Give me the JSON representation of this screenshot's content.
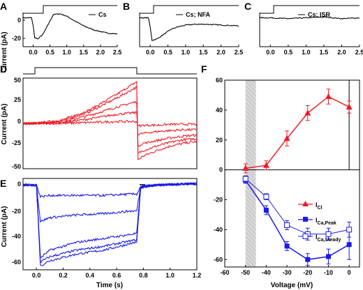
{
  "chart_data": [
    {
      "panel": "A",
      "type": "line",
      "legend": "Cs",
      "ylabel": "Current (pA)",
      "xlim": [
        -0.3,
        2.5
      ],
      "ylim": [
        -35,
        10
      ],
      "x_ticks": [
        "0.0",
        "0.5",
        "1.0",
        "1.5",
        "2.0",
        "2.5"
      ],
      "y_ticks": [
        "-20",
        "0"
      ],
      "series": [
        {
          "x": [
            -0.3,
            -0.05,
            0.0,
            0.05,
            0.15,
            0.3,
            0.45,
            0.6,
            0.8,
            1.0,
            1.2,
            1.5,
            1.8,
            2.0,
            2.2,
            2.5
          ],
          "y": [
            0,
            0,
            -10,
            -25,
            -26,
            -20,
            -8,
            4,
            5,
            2,
            -3,
            -10,
            -15,
            -17,
            -19,
            -20
          ]
        }
      ]
    },
    {
      "panel": "B",
      "type": "line",
      "legend": "Cs; NFA",
      "xlim": [
        -0.3,
        2.5
      ],
      "ylim": [
        -35,
        10
      ],
      "x_ticks": [
        "0.0",
        "0.5",
        "1.0",
        "1.5",
        "2.0",
        "2.5"
      ],
      "series": [
        {
          "x": [
            -0.3,
            -0.05,
            0.0,
            0.05,
            0.2,
            0.4,
            0.6,
            0.8,
            1.0,
            1.3,
            1.6,
            2.0,
            2.5
          ],
          "y": [
            0,
            0,
            -12,
            -28,
            -26,
            -20,
            -14,
            -11,
            -9,
            -8,
            -8,
            -9,
            -10
          ]
        }
      ]
    },
    {
      "panel": "C",
      "type": "line",
      "legend": "Cs; ISR",
      "xlim": [
        -0.3,
        2.5
      ],
      "ylim": [
        -35,
        10
      ],
      "x_ticks": [
        "0.0",
        "0.5",
        "1.0",
        "1.5",
        "2.0",
        "2.5"
      ],
      "series": [
        {
          "x": [
            -0.3,
            0.0,
            0.5,
            1.0,
            1.5,
            2.0,
            2.5
          ],
          "y": [
            0,
            0,
            -1,
            0,
            1,
            -1,
            0
          ]
        }
      ]
    },
    {
      "panel": "D",
      "type": "line",
      "ylabel": "Current (pA)",
      "xlim": [
        -0.1,
        1.2
      ],
      "ylim": [
        -50,
        50
      ],
      "y_ticks": [
        "50",
        "25",
        "0",
        "-25",
        "-50"
      ],
      "series": [
        {
          "x": [
            -0.1,
            0.0,
            0.2,
            0.4,
            0.6,
            0.75,
            0.76,
            0.8,
            0.9,
            1.0,
            1.1,
            1.2
          ],
          "y": [
            0,
            0,
            4,
            15,
            32,
            46,
            -40,
            -36,
            -30,
            -25,
            -22,
            -20
          ]
        },
        {
          "x": [
            -0.1,
            0.0,
            0.2,
            0.4,
            0.6,
            0.75,
            0.76,
            0.8,
            0.9,
            1.0,
            1.1,
            1.2
          ],
          "y": [
            0,
            0,
            3,
            13,
            28,
            40,
            -33,
            -30,
            -25,
            -21,
            -18,
            -17
          ]
        },
        {
          "x": [
            -0.1,
            0.0,
            0.2,
            0.4,
            0.6,
            0.75,
            0.76,
            0.8,
            0.9,
            1.0,
            1.1,
            1.2
          ],
          "y": [
            0,
            0,
            2,
            9,
            18,
            24,
            -25,
            -22,
            -19,
            -16,
            -14,
            -13
          ]
        },
        {
          "x": [
            -0.1,
            0.0,
            0.2,
            0.4,
            0.6,
            0.75,
            0.76,
            0.8,
            0.9,
            1.0,
            1.1,
            1.2
          ],
          "y": [
            0,
            0,
            1,
            5,
            10,
            12,
            -12,
            -11,
            -9,
            -8,
            -7,
            -7
          ]
        },
        {
          "x": [
            -0.1,
            0.0,
            0.2,
            0.4,
            0.6,
            0.75,
            0.76,
            0.8,
            0.9,
            1.0,
            1.1,
            1.2
          ],
          "y": [
            0,
            0,
            0,
            1,
            2,
            2,
            -3,
            -2,
            -2,
            -1,
            -1,
            -1
          ]
        }
      ]
    },
    {
      "panel": "E",
      "type": "line",
      "xlabel": "Time (s)",
      "ylabel": "Current (pA)",
      "xlim": [
        -0.1,
        1.2
      ],
      "ylim": [
        -65,
        5
      ],
      "x_ticks": [
        "0.0",
        "0.2",
        "0.4",
        "0.6",
        "0.8",
        "1.0",
        "1.2"
      ],
      "y_ticks": [
        "0",
        "-20",
        "-40",
        "-60"
      ],
      "series": [
        {
          "x": [
            -0.1,
            0.0,
            0.03,
            0.1,
            0.3,
            0.5,
            0.7,
            0.75,
            0.78,
            0.9,
            1.2
          ],
          "y": [
            0,
            0,
            -62,
            -58,
            -53,
            -50,
            -45,
            -44,
            -2,
            0,
            1
          ]
        },
        {
          "x": [
            -0.1,
            0.0,
            0.03,
            0.1,
            0.3,
            0.5,
            0.7,
            0.75,
            0.78,
            0.9,
            1.2
          ],
          "y": [
            0,
            0,
            -59,
            -55,
            -50,
            -47,
            -43,
            -42,
            -2,
            0,
            1
          ]
        },
        {
          "x": [
            -0.1,
            0.0,
            0.03,
            0.1,
            0.3,
            0.5,
            0.7,
            0.75,
            0.78,
            0.9,
            1.2
          ],
          "y": [
            0,
            0,
            -56,
            -50,
            -44,
            -41,
            -38,
            -37,
            -2,
            0,
            1
          ]
        },
        {
          "x": [
            -0.1,
            0.0,
            0.03,
            0.1,
            0.3,
            0.5,
            0.7,
            0.75,
            0.78,
            0.9,
            1.2
          ],
          "y": [
            0,
            0,
            -28,
            -25,
            -23,
            -22,
            -20,
            -20,
            -1,
            0,
            1
          ]
        },
        {
          "x": [
            -0.1,
            0.0,
            0.03,
            0.1,
            0.3,
            0.5,
            0.7,
            0.75,
            0.78,
            0.9,
            1.2
          ],
          "y": [
            0,
            0,
            -9,
            -8,
            -8,
            -8,
            -7,
            -7,
            -1,
            0,
            1
          ]
        }
      ]
    },
    {
      "panel": "F",
      "type": "scatter",
      "xlabel": "Voltage (mV)",
      "xlim": [
        -60,
        5
      ],
      "ylim": [
        -65,
        60
      ],
      "x_ticks": [
        "-60",
        "-50",
        "-40",
        "-30",
        "-20",
        "-10",
        "0"
      ],
      "y_ticks": [
        "60",
        "40",
        "20",
        "0",
        "-20",
        "-40",
        "-60"
      ],
      "shaded_region_x": [
        -50,
        -45
      ],
      "series": [
        {
          "name": "I_Cl",
          "marker": "filled-triangle",
          "color": "#ee1c25",
          "x": [
            -50,
            -40,
            -30,
            -20,
            -10,
            0
          ],
          "y": [
            1,
            3,
            21,
            38,
            49,
            42
          ],
          "err": [
            3,
            3,
            5,
            5,
            5,
            4
          ]
        },
        {
          "name": "I_Ca,Peak",
          "marker": "filled-square",
          "color": "#1a1ae6",
          "x": [
            -50,
            -40,
            -30,
            -20,
            -10,
            0
          ],
          "y": [
            -7,
            -27,
            -51,
            -60,
            -58,
            -50
          ],
          "err": [
            2,
            3,
            3,
            4,
            5,
            10
          ]
        },
        {
          "name": "I_Ca,Steady",
          "marker": "open-square",
          "color": "#1a1ae6",
          "x": [
            -50,
            -40,
            -30,
            -20,
            -10,
            0
          ],
          "y": [
            -6,
            -18,
            -37,
            -43,
            -43,
            -40
          ],
          "err": [
            2,
            2,
            3,
            4,
            4,
            5
          ]
        }
      ],
      "legend": [
        {
          "main": "I",
          "sub": "Cl"
        },
        {
          "main": "I",
          "sub": "Ca,Peak"
        },
        {
          "main": "I",
          "sub": "Ca,Steady"
        }
      ]
    }
  ],
  "colors": {
    "red": "#ee1c25",
    "blue": "#1a1ae6",
    "shade": "#d8d8d8"
  }
}
